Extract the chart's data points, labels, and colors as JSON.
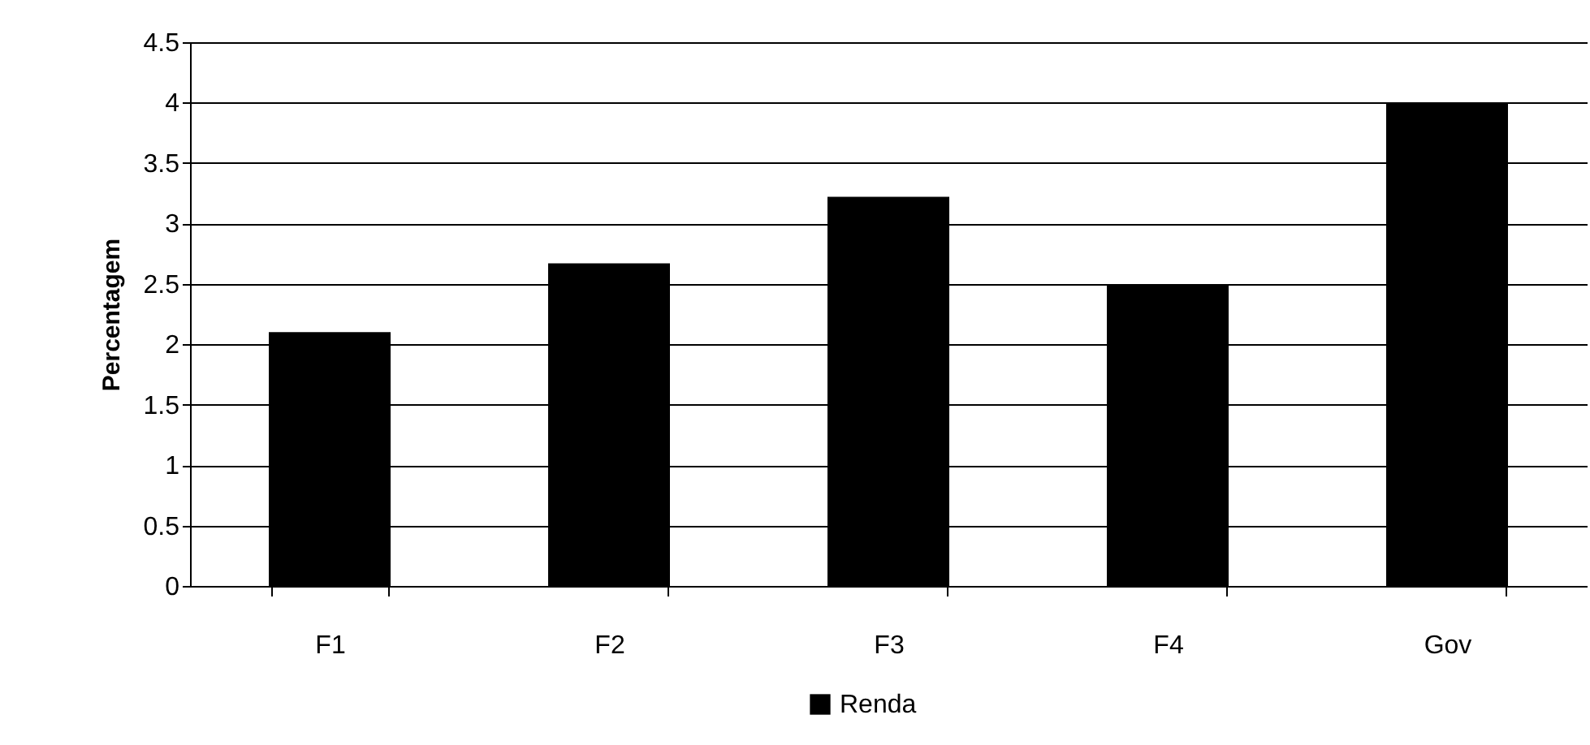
{
  "chart_data": {
    "type": "bar",
    "ylabel": "Percentagem",
    "categories": [
      "F1",
      "F2",
      "F3",
      "F4",
      "Gov"
    ],
    "series": [
      {
        "name": "Renda",
        "color": "#000000",
        "values": [
          2.1,
          2.67,
          3.22,
          2.49,
          4.0
        ]
      }
    ],
    "ylim": [
      0,
      4.5
    ],
    "yticks": [
      0,
      0.5,
      1,
      1.5,
      2,
      2.5,
      3,
      3.5,
      4,
      4.5
    ],
    "grid": "y",
    "legend": "bottom"
  }
}
